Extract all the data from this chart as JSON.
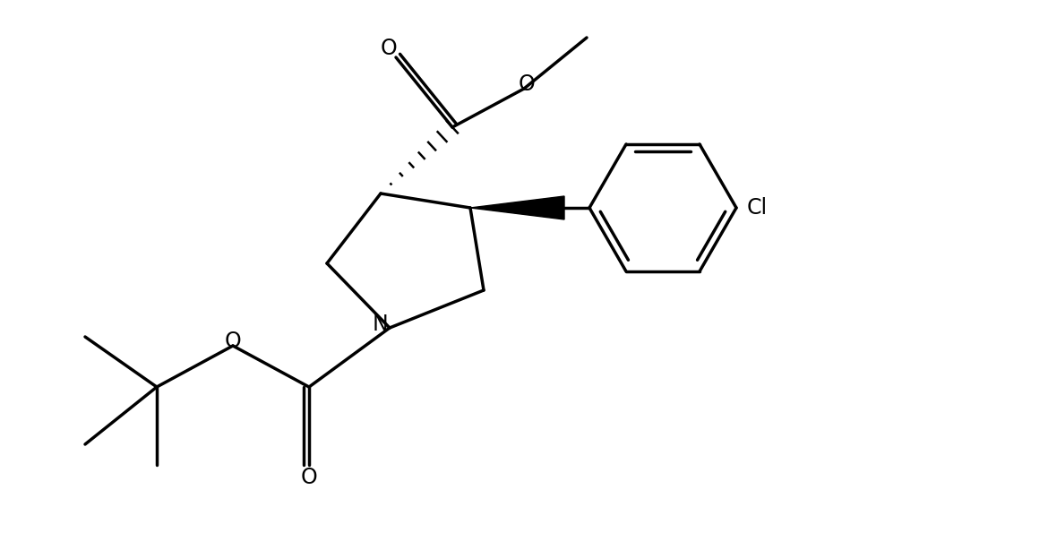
{
  "background_color": "#ffffff",
  "line_color": "#000000",
  "line_width": 2.5,
  "figsize": [
    11.7,
    6.14
  ],
  "dpi": 100,
  "xlim": [
    0,
    11.7
  ],
  "ylim": [
    0,
    6.14
  ]
}
